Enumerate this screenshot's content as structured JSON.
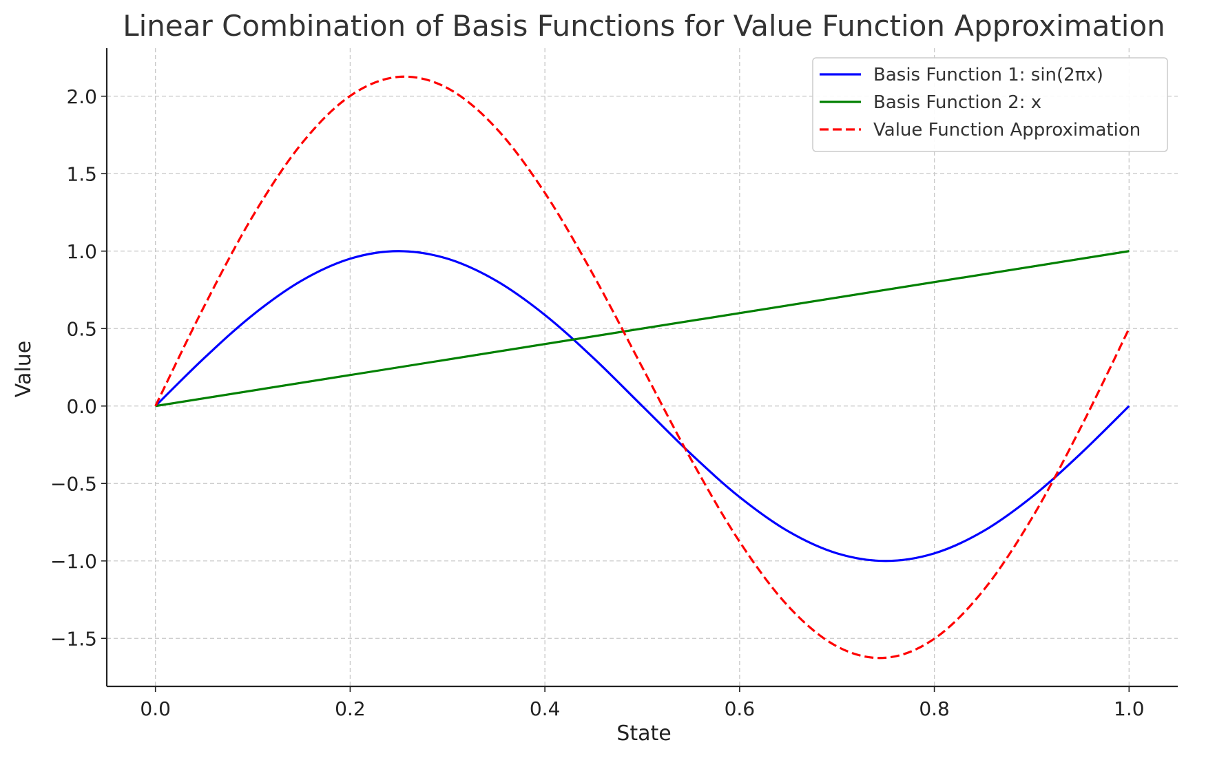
{
  "chart_data": {
    "type": "line",
    "title": "Linear Combination of Basis Functions for Value Function Approximation",
    "xlabel": "State",
    "ylabel": "Value",
    "xlim": [
      -0.05,
      1.05
    ],
    "ylim": [
      -1.81,
      2.31
    ],
    "x_ticks": [
      0.0,
      0.2,
      0.4,
      0.6,
      0.8,
      1.0
    ],
    "x_tick_labels": [
      "0.0",
      "0.2",
      "0.4",
      "0.6",
      "0.8",
      "1.0"
    ],
    "y_ticks": [
      -1.5,
      -1.0,
      -0.5,
      0.0,
      0.5,
      1.0,
      1.5,
      2.0
    ],
    "y_tick_labels": [
      "−1.5",
      "−1.0",
      "−0.5",
      "0.0",
      "0.5",
      "1.0",
      "1.5",
      "2.0"
    ],
    "grid": true,
    "legend_position": "top-right",
    "series": [
      {
        "name": "Basis Function 1: sin(2πx)",
        "color": "#0000ff",
        "style": "solid",
        "x": [
          0.0,
          0.05,
          0.1,
          0.15,
          0.2,
          0.25,
          0.3,
          0.35,
          0.4,
          0.45,
          0.5,
          0.55,
          0.6,
          0.65,
          0.7,
          0.75,
          0.8,
          0.85,
          0.9,
          0.95,
          1.0
        ],
        "y": [
          0.0,
          0.309,
          0.588,
          0.809,
          0.951,
          1.0,
          0.951,
          0.809,
          0.588,
          0.309,
          0.0,
          -0.309,
          -0.588,
          -0.809,
          -0.951,
          -1.0,
          -0.951,
          -0.809,
          -0.588,
          -0.309,
          0.0
        ]
      },
      {
        "name": "Basis Function 2: x",
        "color": "#008000",
        "style": "solid",
        "x": [
          0.0,
          1.0
        ],
        "y": [
          0.0,
          1.0
        ]
      },
      {
        "name": "Value Function Approximation",
        "color": "#ff0000",
        "style": "dashed",
        "x": [
          0.0,
          0.05,
          0.1,
          0.15,
          0.2,
          0.25,
          0.3,
          0.35,
          0.4,
          0.45,
          0.5,
          0.55,
          0.6,
          0.65,
          0.7,
          0.75,
          0.8,
          0.85,
          0.9,
          0.95,
          1.0
        ],
        "y": [
          0.0,
          0.643,
          1.226,
          1.693,
          2.002,
          2.125,
          2.052,
          1.793,
          1.376,
          0.843,
          0.25,
          -0.343,
          -0.876,
          -1.293,
          -1.552,
          -1.625,
          -1.502,
          -1.193,
          -0.726,
          -0.143,
          0.5
        ]
      }
    ]
  }
}
